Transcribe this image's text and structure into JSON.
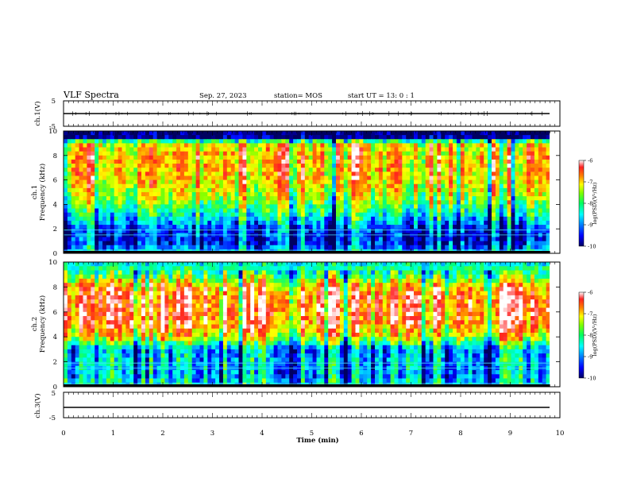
{
  "header": {
    "title": "VLF Spectra",
    "date": "Sep. 27, 2023",
    "station": "station= MOS",
    "start": "start  UT  =   13: 0  : 1"
  },
  "colors": {
    "colormap": [
      "#000060",
      "#0000ff",
      "#0080ff",
      "#00ffff",
      "#00ff80",
      "#80ff00",
      "#ffff00",
      "#ff8000",
      "#ff2020",
      "#ffffff"
    ],
    "trace": "#000000"
  },
  "chart_data": [
    {
      "type": "line",
      "panel": "ch1-waveform",
      "ylabel": "ch.1(V)",
      "ylim": [
        -5,
        5
      ],
      "yticks": [
        "5",
        "-5"
      ],
      "series": [
        {
          "values": [
            -1.2,
            -1.2,
            -1.1,
            -1.3,
            -1.2,
            -1.2,
            -1.1,
            -1.2,
            -1.3,
            -1.2,
            -1.2
          ]
        }
      ],
      "x": [
        0,
        1,
        2,
        3,
        4,
        5,
        6,
        7,
        8,
        9,
        9.8
      ]
    },
    {
      "type": "heatmap",
      "panel": "ch1-spectrogram",
      "ylabel": "ch.1\nFrequency (kHz)",
      "ylim": [
        0,
        10
      ],
      "yticks": [
        "0",
        "2",
        "4",
        "6",
        "8",
        "10"
      ],
      "colorbar": {
        "label": "log(PSD)(V²/Hz)",
        "ticks": [
          "-6",
          "-7",
          "-8",
          "-9",
          "-10"
        ],
        "range": [
          -10,
          -6
        ]
      },
      "freq_profile_kHz": [
        0,
        1,
        2,
        3,
        4,
        5,
        6,
        7,
        8,
        9,
        9.5,
        10
      ],
      "freq_profile_level": [
        -8.6,
        -9.4,
        -9.2,
        -8.4,
        -7.8,
        -7.3,
        -7.0,
        -6.9,
        -6.9,
        -7.2,
        -9.8,
        -10.0
      ]
    },
    {
      "type": "heatmap",
      "panel": "ch2-spectrogram",
      "ylabel": "ch.2\nFrequency (kHz)",
      "ylim": [
        0,
        10
      ],
      "yticks": [
        "0",
        "2",
        "4",
        "6",
        "8",
        "10"
      ],
      "colorbar": {
        "label": "log(PSD)(V²/Hz)",
        "ticks": [
          "-6",
          "-7",
          "-8",
          "-9",
          "-10"
        ],
        "range": [
          -10,
          -6
        ]
      },
      "freq_profile_kHz": [
        0,
        1,
        2,
        3,
        3.5,
        4,
        5,
        6,
        7,
        8,
        8.5,
        9,
        10
      ],
      "freq_profile_level": [
        -8.4,
        -8.8,
        -8.6,
        -8.8,
        -8.0,
        -7.2,
        -6.6,
        -6.4,
        -6.4,
        -6.8,
        -7.4,
        -8.0,
        -8.6
      ]
    },
    {
      "type": "line",
      "panel": "ch3-waveform",
      "ylabel": "ch.3(V)",
      "ylim": [
        -5,
        5
      ],
      "yticks": [
        "5",
        "-5"
      ],
      "series": [
        {
          "values": [
            -1.1,
            -1.1,
            -1.1,
            -1.1,
            -1.1,
            -1.1,
            -1.1,
            -1.1,
            -1.1,
            -1.1,
            -1.1
          ]
        }
      ],
      "x": [
        0,
        1,
        2,
        3,
        4,
        5,
        6,
        7,
        8,
        9,
        9.8
      ]
    }
  ],
  "xaxis": {
    "label": "Time  (min)",
    "xlim": [
      0,
      10
    ],
    "ticks": [
      "0",
      "1",
      "2",
      "3",
      "4",
      "5",
      "6",
      "7",
      "8",
      "9",
      "10"
    ],
    "data_end": 9.8
  }
}
